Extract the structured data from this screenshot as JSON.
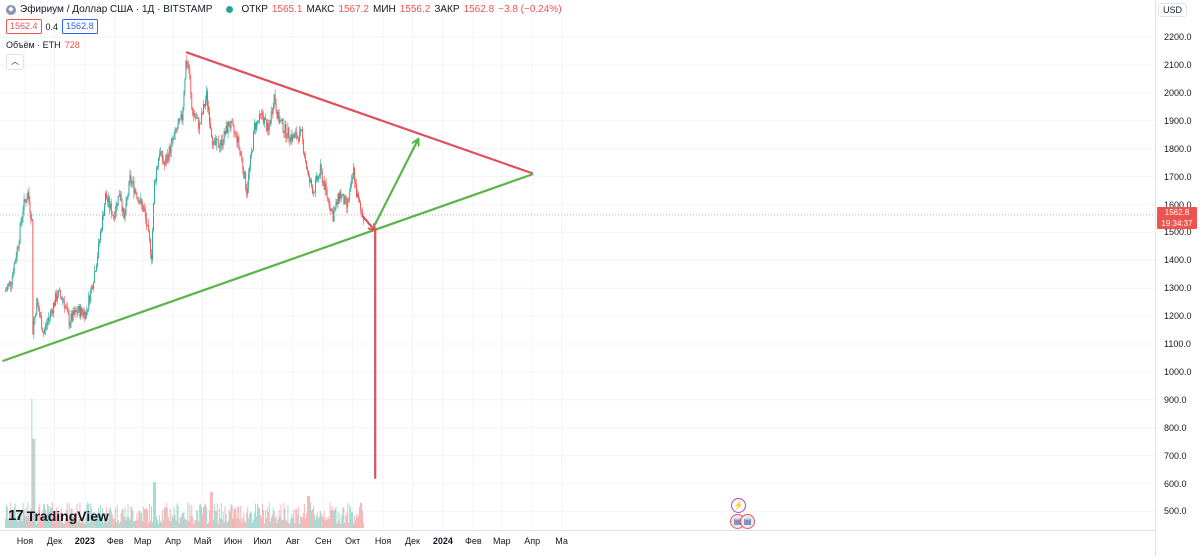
{
  "legend": {
    "symbol_title": "Эфириум / Доллар США · 1Д · BITSTAMP",
    "open_label": "ОТКР",
    "open_value": "1565.1",
    "high_label": "МАКС",
    "high_value": "1567.2",
    "low_label": "МИН",
    "low_value": "1556.2",
    "close_label": "ЗАКР",
    "close_value": "1562.8",
    "change_value": "−3.8 (−0.24%)",
    "bid": "1562.4",
    "spread": "0.4",
    "ask": "1562.8",
    "volume_label": "Объём · ETH",
    "volume_value": "728",
    "collapse_icon": "chevron-up-icon"
  },
  "currency": "USD",
  "current_price": {
    "value": "1562.8",
    "countdown": "19:34:37"
  },
  "brand": "TradingView",
  "colors": {
    "up": "#26a69a",
    "down": "#ef5350",
    "resistance_line": "#e0505a",
    "support_line": "#5cb347"
  },
  "chart_data": {
    "type": "candlestick",
    "ylim": [
      450,
      2270
    ],
    "y_ticks": [
      500,
      600,
      700,
      800,
      900,
      1000,
      1100,
      1200,
      1300,
      1400,
      1500,
      1600,
      1700,
      1800,
      1900,
      2000,
      2100,
      2200
    ],
    "x_ticks": [
      {
        "label": "Ноя",
        "date": "2022-11-01",
        "bold": false
      },
      {
        "label": "Дек",
        "date": "2022-12-01",
        "bold": false
      },
      {
        "label": "2023",
        "date": "2023-01-01",
        "bold": true
      },
      {
        "label": "Фев",
        "date": "2023-02-01",
        "bold": false
      },
      {
        "label": "Мар",
        "date": "2023-03-01",
        "bold": false
      },
      {
        "label": "Апр",
        "date": "2023-04-01",
        "bold": false
      },
      {
        "label": "Май",
        "date": "2023-05-01",
        "bold": false
      },
      {
        "label": "Июн",
        "date": "2023-06-01",
        "bold": false
      },
      {
        "label": "Июл",
        "date": "2023-07-01",
        "bold": false
      },
      {
        "label": "Авг",
        "date": "2023-08-01",
        "bold": false
      },
      {
        "label": "Сен",
        "date": "2023-09-01",
        "bold": false
      },
      {
        "label": "Окт",
        "date": "2023-10-01",
        "bold": false
      },
      {
        "label": "Ноя",
        "date": "2023-11-01",
        "bold": false
      },
      {
        "label": "Дек",
        "date": "2023-12-01",
        "bold": false
      },
      {
        "label": "2024",
        "date": "2024-01-01",
        "bold": true
      },
      {
        "label": "Фев",
        "date": "2024-02-01",
        "bold": false
      },
      {
        "label": "Мар",
        "date": "2024-03-01",
        "bold": false
      },
      {
        "label": "Апр",
        "date": "2024-04-01",
        "bold": false
      },
      {
        "label": "Ма",
        "date": "2024-05-01",
        "bold": false
      }
    ],
    "price_path": [
      [
        "2022-10-12",
        1290
      ],
      [
        "2022-10-18",
        1330
      ],
      [
        "2022-10-25",
        1460
      ],
      [
        "2022-10-30",
        1590
      ],
      [
        "2022-11-04",
        1640
      ],
      [
        "2022-11-08",
        1540
      ],
      [
        "2022-11-09",
        1150
      ],
      [
        "2022-11-13",
        1250
      ],
      [
        "2022-11-20",
        1140
      ],
      [
        "2022-11-27",
        1210
      ],
      [
        "2022-12-04",
        1280
      ],
      [
        "2022-12-10",
        1260
      ],
      [
        "2022-12-16",
        1180
      ],
      [
        "2022-12-25",
        1220
      ],
      [
        "2023-01-02",
        1210
      ],
      [
        "2023-01-09",
        1320
      ],
      [
        "2023-01-14",
        1420
      ],
      [
        "2023-01-22",
        1630
      ],
      [
        "2023-01-30",
        1560
      ],
      [
        "2023-02-06",
        1650
      ],
      [
        "2023-02-10",
        1540
      ],
      [
        "2023-02-16",
        1690
      ],
      [
        "2023-02-23",
        1640
      ],
      [
        "2023-03-03",
        1570
      ],
      [
        "2023-03-10",
        1420
      ],
      [
        "2023-03-13",
        1680
      ],
      [
        "2023-03-18",
        1790
      ],
      [
        "2023-03-23",
        1740
      ],
      [
        "2023-03-30",
        1810
      ],
      [
        "2023-04-05",
        1870
      ],
      [
        "2023-04-10",
        1910
      ],
      [
        "2023-04-14",
        2110
      ],
      [
        "2023-04-17",
        2090
      ],
      [
        "2023-04-20",
        1940
      ],
      [
        "2023-04-28",
        1880
      ],
      [
        "2023-05-05",
        1990
      ],
      [
        "2023-05-12",
        1810
      ],
      [
        "2023-05-20",
        1820
      ],
      [
        "2023-05-28",
        1890
      ],
      [
        "2023-06-05",
        1840
      ],
      [
        "2023-06-10",
        1760
      ],
      [
        "2023-06-15",
        1650
      ],
      [
        "2023-06-20",
        1780
      ],
      [
        "2023-06-23",
        1880
      ],
      [
        "2023-07-01",
        1920
      ],
      [
        "2023-07-07",
        1860
      ],
      [
        "2023-07-13",
        1990
      ],
      [
        "2023-07-17",
        1910
      ],
      [
        "2023-07-25",
        1860
      ],
      [
        "2023-08-01",
        1840
      ],
      [
        "2023-08-10",
        1850
      ],
      [
        "2023-08-17",
        1690
      ],
      [
        "2023-08-22",
        1650
      ],
      [
        "2023-08-29",
        1720
      ],
      [
        "2023-09-05",
        1630
      ],
      [
        "2023-09-11",
        1560
      ],
      [
        "2023-09-18",
        1640
      ],
      [
        "2023-09-25",
        1590
      ],
      [
        "2023-09-30",
        1670
      ],
      [
        "2023-10-02",
        1720
      ],
      [
        "2023-10-05",
        1640
      ],
      [
        "2023-10-09",
        1580
      ],
      [
        "2023-10-12",
        1562
      ]
    ],
    "volume_peaks": [
      [
        "2022-11-09",
        905
      ],
      [
        "2022-11-10",
        760
      ],
      [
        "2023-03-13",
        605
      ],
      [
        "2023-08-17",
        555
      ],
      [
        "2023-05-10",
        570
      ]
    ],
    "drawings": [
      {
        "kind": "trendline",
        "role": "resistance",
        "points": [
          [
            "2023-04-15",
            2145
          ],
          [
            "2024-04-01",
            1712
          ]
        ]
      },
      {
        "kind": "trendline",
        "role": "support",
        "points": [
          [
            "2022-10-10",
            1040
          ],
          [
            "2024-04-01",
            1708
          ]
        ]
      },
      {
        "kind": "arrow",
        "color": "down",
        "points": [
          [
            "2023-10-12",
            1555
          ],
          [
            "2023-10-24",
            1505
          ]
        ]
      },
      {
        "kind": "arrow",
        "color": "up",
        "points": [
          [
            "2023-10-24",
            1530
          ],
          [
            "2023-12-07",
            1835
          ]
        ]
      },
      {
        "kind": "line",
        "color": "down",
        "points": [
          [
            "2023-10-24",
            1505
          ],
          [
            "2023-10-24",
            620
          ]
        ]
      }
    ]
  }
}
